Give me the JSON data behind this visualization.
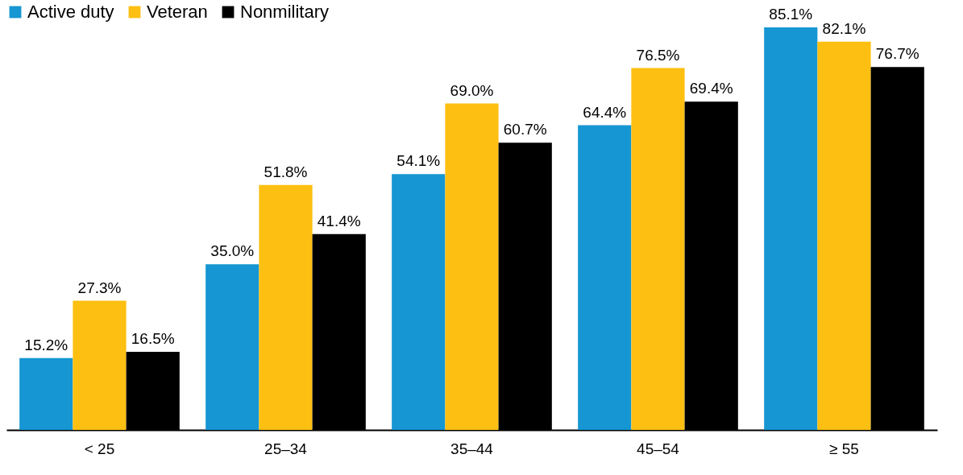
{
  "chart_data": {
    "type": "bar",
    "categories": [
      "< 25",
      "25–34",
      "35–44",
      "45–54",
      "≥ 55"
    ],
    "legend": "top left",
    "series": [
      {
        "name": "Active duty",
        "color": "#1696d2",
        "values": [
          15.2,
          35.0,
          54.1,
          64.4,
          85.1
        ],
        "value_labels": [
          "15.2%",
          "35.0%",
          "54.1%",
          "64.4%",
          "85.1%"
        ]
      },
      {
        "name": "Veteran",
        "color": "#fdbf11",
        "values": [
          27.3,
          51.8,
          69.0,
          76.5,
          82.1
        ],
        "value_labels": [
          "27.3%",
          "51.8%",
          "69.0%",
          "76.5%",
          "82.1%"
        ]
      },
      {
        "name": "Nonmilitary",
        "color": "#000000",
        "values": [
          16.5,
          41.4,
          60.7,
          69.4,
          76.7
        ],
        "value_labels": [
          "16.5%",
          "41.4%",
          "60.7%",
          "69.4%",
          "76.7%"
        ]
      }
    ]
  }
}
